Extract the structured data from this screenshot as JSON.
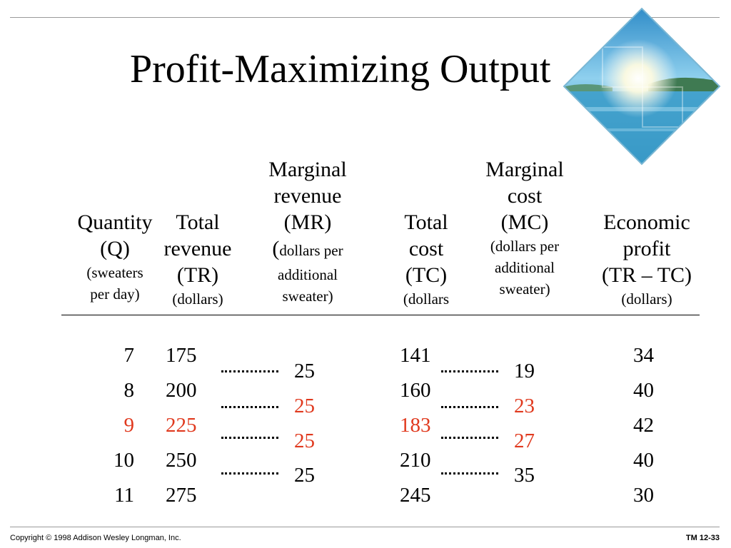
{
  "title": "Profit-Maximizing Output",
  "colors": {
    "highlight": "#e0391e"
  },
  "headers": {
    "quantity": [
      "Quantity",
      "(Q)",
      "(sweaters",
      "per day)"
    ],
    "total_revenue": [
      "Total",
      "revenue",
      "(TR)",
      "(dollars)"
    ],
    "marginal_revenue": [
      "Marginal",
      "revenue",
      "(MR)",
      "(",
      "dollars per",
      "additional",
      "sweater)"
    ],
    "total_cost": [
      "Total",
      "cost",
      "(TC)",
      "(dollars"
    ],
    "marginal_cost": [
      "Marginal",
      "cost",
      "(MC)",
      "(dollars per",
      "additional",
      "sweater)"
    ],
    "economic_profit": [
      "Economic",
      "profit",
      "(TR – TC)",
      "(dollars)"
    ]
  },
  "rows": [
    {
      "q": "7",
      "tr": "175",
      "tc": "141",
      "profit": "34",
      "highlight": false
    },
    {
      "q": "8",
      "tr": "200",
      "tc": "160",
      "profit": "40",
      "highlight": false
    },
    {
      "q": "9",
      "tr": "225",
      "tc": "183",
      "profit": "42",
      "highlight": true
    },
    {
      "q": "10",
      "tr": "250",
      "tc": "210",
      "profit": "40",
      "highlight": false
    },
    {
      "q": "11",
      "tr": "275",
      "tc": "245",
      "profit": "30",
      "highlight": false
    }
  ],
  "marginals": [
    {
      "mr": "25",
      "mc": "19",
      "highlight": false
    },
    {
      "mr": "25",
      "mc": "23",
      "highlight": true
    },
    {
      "mr": "25",
      "mc": "27",
      "highlight": true
    },
    {
      "mr": "25",
      "mc": "35",
      "highlight": false
    }
  ],
  "footer": {
    "copyright": "Copyright © 1998 Addison Wesley Longman, Inc.",
    "slide_id": "TM 12-33"
  }
}
